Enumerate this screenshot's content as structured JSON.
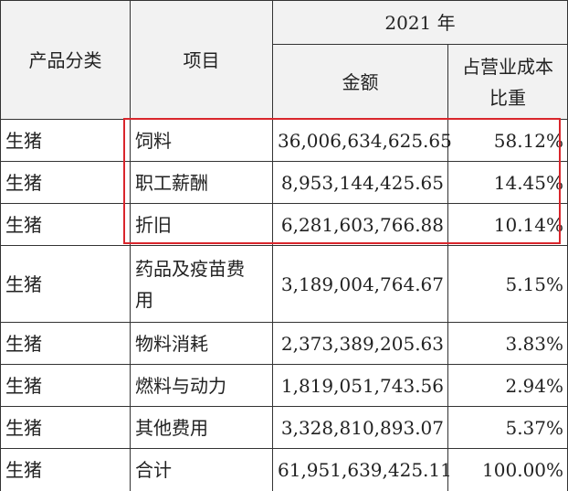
{
  "header": {
    "category": "产品分类",
    "item": "项目",
    "year": "2021 年",
    "amount": "金额",
    "ratio": "占营业成本比重"
  },
  "rows": [
    [
      "生猪",
      "饲料",
      "36,006,634,625.65",
      "58.12%"
    ],
    [
      "生猪",
      "职工薪酬",
      "8,953,144,425.65",
      "14.45%"
    ],
    [
      "生猪",
      "折旧",
      "6,281,603,766.88",
      "10.14%"
    ],
    [
      "生猪",
      "药品及疫苗费用",
      "3,189,004,764.67",
      "5.15%"
    ],
    [
      "生猪",
      "物料消耗",
      "2,373,389,205.63",
      "3.83%"
    ],
    [
      "生猪",
      "燃料与动力",
      "1,819,051,743.56",
      "2.94%"
    ],
    [
      "生猪",
      "其他费用",
      "3,328,810,893.07",
      "5.37%"
    ],
    [
      "生猪",
      "合计",
      "61,951,639,425.11",
      "100.00%"
    ]
  ]
}
